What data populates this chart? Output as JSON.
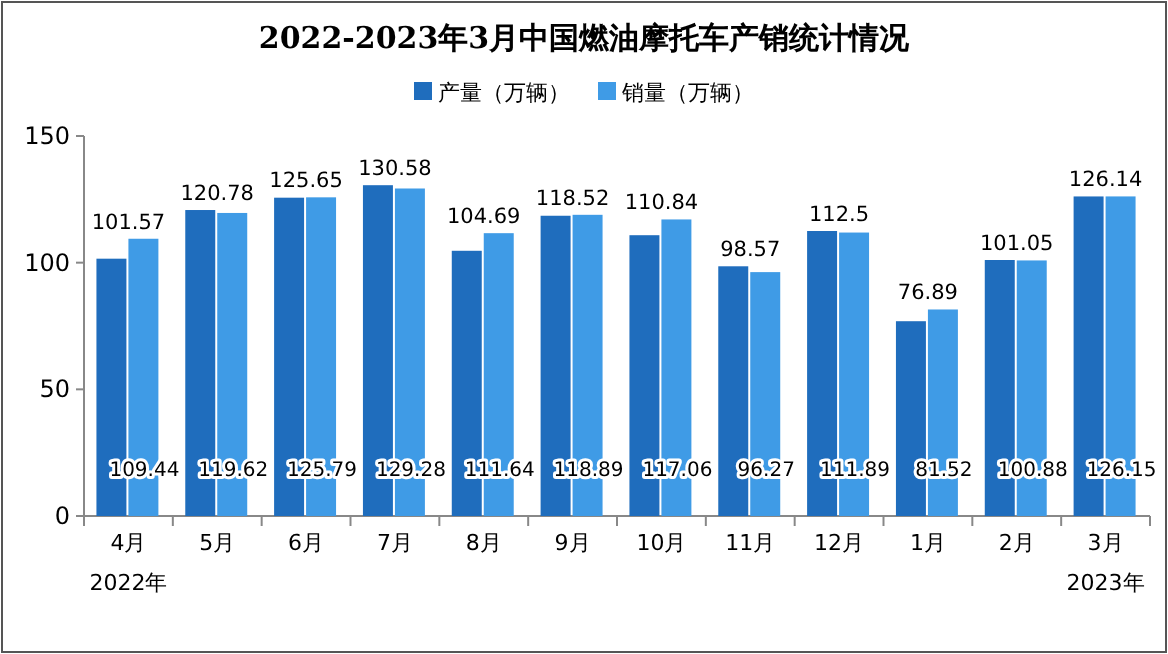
{
  "chart_data": {
    "type": "bar",
    "title": "2022-2023年3月中国燃油摩托车产销统计情况",
    "categories": [
      "4月",
      "5月",
      "6月",
      "7月",
      "8月",
      "9月",
      "10月",
      "11月",
      "12月",
      "1月",
      "2月",
      "3月"
    ],
    "series": [
      {
        "name": "产量（万辆）",
        "color": "#1f6dbd",
        "values": [
          101.57,
          120.78,
          125.65,
          130.58,
          104.69,
          118.52,
          110.84,
          98.57,
          112.5,
          76.89,
          101.05,
          126.14
        ]
      },
      {
        "name": "销量（万辆）",
        "color": "#3f9be6",
        "values": [
          109.44,
          119.62,
          125.79,
          129.28,
          111.64,
          118.89,
          117.06,
          96.27,
          111.89,
          81.52,
          100.88,
          126.15
        ]
      }
    ],
    "ylim": [
      0,
      150
    ],
    "yticks": [
      0,
      50,
      100,
      150
    ],
    "grid": false,
    "legend": "top",
    "data_labels": true,
    "annotations": [
      "2022年",
      "2023年"
    ]
  }
}
